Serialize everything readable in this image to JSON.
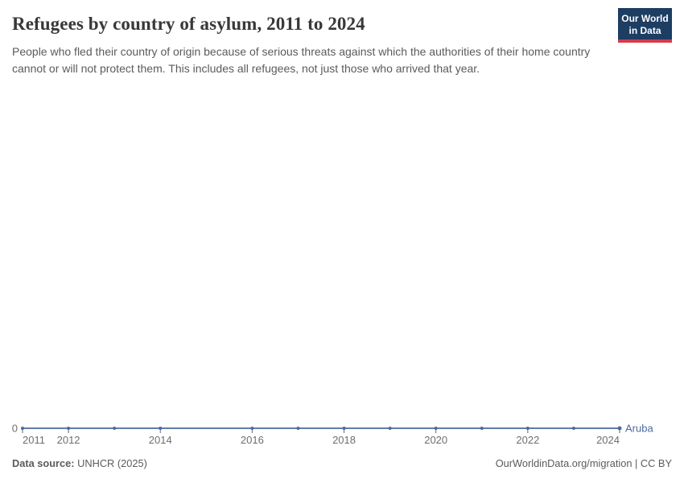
{
  "header": {
    "title": "Refugees by country of asylum, 2011 to 2024",
    "subtitle": "People who fled their country of origin because of serious threats against which the authorities of their home country cannot or will not protect them. This includes all refugees, not just those who arrived that year.",
    "logo": {
      "line1": "Our World",
      "line2": "in Data"
    }
  },
  "footer": {
    "source_label": "Data source:",
    "source_value": "UNHCR (2025)",
    "attribution": "OurWorldinData.org/migration | CC BY"
  },
  "colors": {
    "line": "#4C6A9C",
    "tick_label": "#6e6e6e",
    "title_text": "#383838",
    "subtitle_text": "#5b5b5b",
    "logo_navy": "#1d3d63",
    "logo_red": "#d73a49"
  },
  "chart_data": {
    "type": "line",
    "title": "Refugees by country of asylum, 2011 to 2024",
    "xlabel": "",
    "ylabel": "",
    "xlim": [
      2011,
      2024
    ],
    "ylim": [
      0,
      0
    ],
    "grid": false,
    "legend_position": "end-of-line label",
    "x_ticks": [
      2011,
      2012,
      2014,
      2016,
      2018,
      2020,
      2022,
      2024
    ],
    "y_ticks": [
      0
    ],
    "series": [
      {
        "name": "Aruba",
        "color": "#4C6A9C",
        "x": [
          2011,
          2012,
          2013,
          2014,
          2016,
          2017,
          2018,
          2019,
          2020,
          2021,
          2022,
          2023,
          2024
        ],
        "values": [
          0,
          0,
          0,
          0,
          0,
          0,
          0,
          0,
          0,
          0,
          0,
          0,
          0
        ]
      }
    ],
    "note": "Flat series at 0 refugees for every shown year; no data point marker for 2015."
  }
}
